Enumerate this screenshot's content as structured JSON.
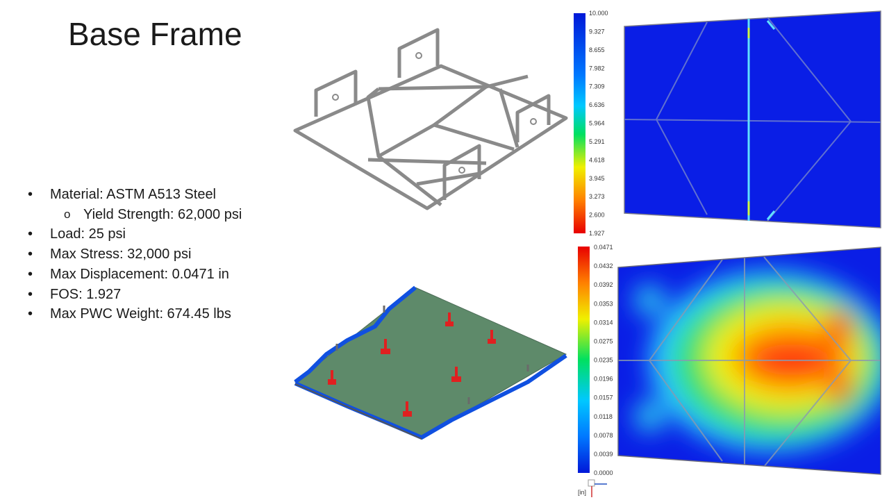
{
  "slide": {
    "title": "Base Frame",
    "bullets": [
      {
        "text": "Material: ASTM A513 Steel",
        "level": 1
      },
      {
        "text": "Yield Strength: 62,000 psi",
        "level": 2
      },
      {
        "text": "Load: 25 psi",
        "level": 1
      },
      {
        "text": "Max Stress: 32,000 psi",
        "level": 1
      },
      {
        "text": "Max Displacement: 0.0471 in",
        "level": 1
      },
      {
        "text": "FOS: 1.927",
        "level": 1
      },
      {
        "text": "Max PWC Weight: 674.45 lbs",
        "level": 1
      }
    ]
  },
  "fos_legend": {
    "labels": [
      "10.000",
      "9.327",
      "8.655",
      "7.982",
      "7.309",
      "6.636",
      "5.964",
      "5.291",
      "4.618",
      "3.945",
      "3.273",
      "2.600",
      "1.927"
    ],
    "colors": [
      "#0018d8",
      "#00c8ff",
      "#00e060",
      "#f0f000",
      "#ff8000",
      "#e80000"
    ]
  },
  "disp_legend": {
    "labels": [
      "0.0471",
      "0.0432",
      "0.0392",
      "0.0353",
      "0.0314",
      "0.0275",
      "0.0235",
      "0.0196",
      "0.0157",
      "0.0118",
      "0.0078",
      "0.0039",
      "0.0000"
    ],
    "colors": [
      "#e80000",
      "#ff8000",
      "#f0f000",
      "#00e060",
      "#00c8ff",
      "#0018d8"
    ],
    "unit": "[in]"
  }
}
